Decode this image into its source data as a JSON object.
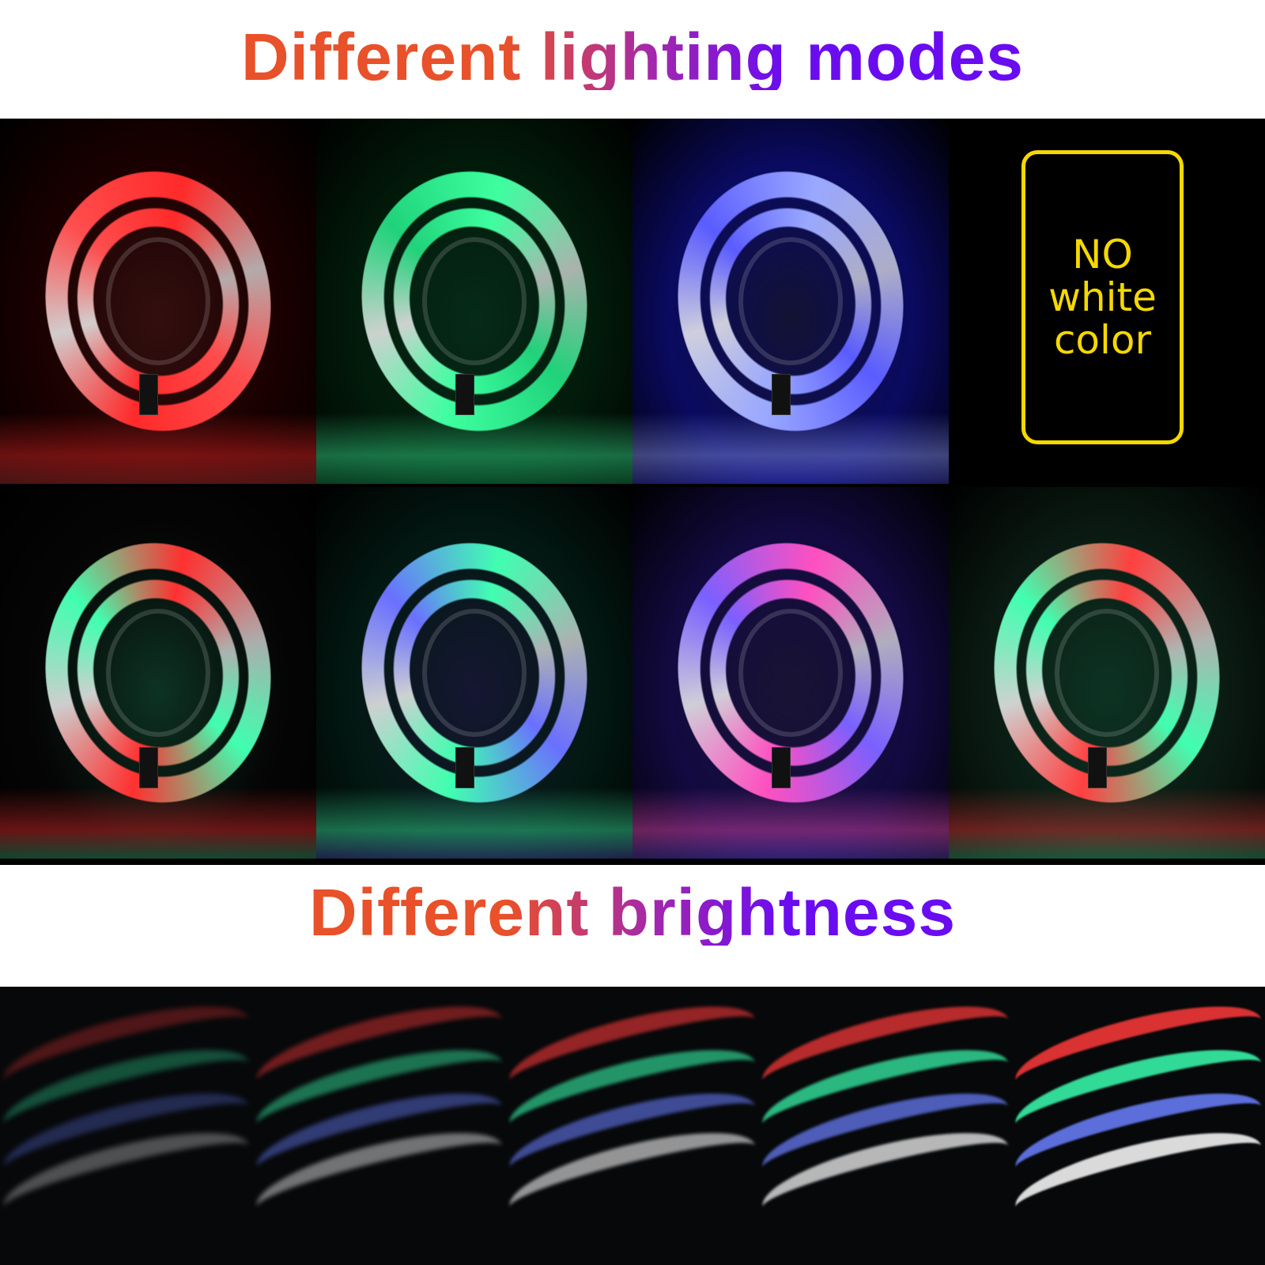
{
  "headings": {
    "modes": "Different lighting modes",
    "brightness": "Different brightness"
  },
  "gradient_colors": [
    "#e8512a",
    "#6a0cf0"
  ],
  "modes_panels": [
    {
      "label": "red",
      "colors": [
        "#ff2a2a",
        "#ff4d4d"
      ],
      "bg": "#1a0000"
    },
    {
      "label": "green",
      "colors": [
        "#3dffa0",
        "#20d27a"
      ],
      "bg": "#021a0a"
    },
    {
      "label": "blue",
      "colors": [
        "#9aa8ff",
        "#5a5cff"
      ],
      "bg": "#0a0a60"
    },
    {
      "label": "notice"
    },
    {
      "label": "red-green",
      "colors": [
        "#ff3030",
        "#40ffb0"
      ],
      "bg": "#050505"
    },
    {
      "label": "green-blue",
      "colors": [
        "#40ffb0",
        "#6a70ff"
      ],
      "bg": "#031812"
    },
    {
      "label": "pink-blue",
      "colors": [
        "#ff50c0",
        "#7a60ff"
      ],
      "bg": "#120a40"
    },
    {
      "label": "multi",
      "colors": [
        "#ff4040",
        "#40ffb0"
      ],
      "bg": "#0a1a12"
    }
  ],
  "notice": {
    "lines": [
      "NO",
      "white",
      "color"
    ],
    "color": "#f5d800"
  },
  "brightness_levels": [
    20,
    40,
    60,
    80,
    100
  ]
}
